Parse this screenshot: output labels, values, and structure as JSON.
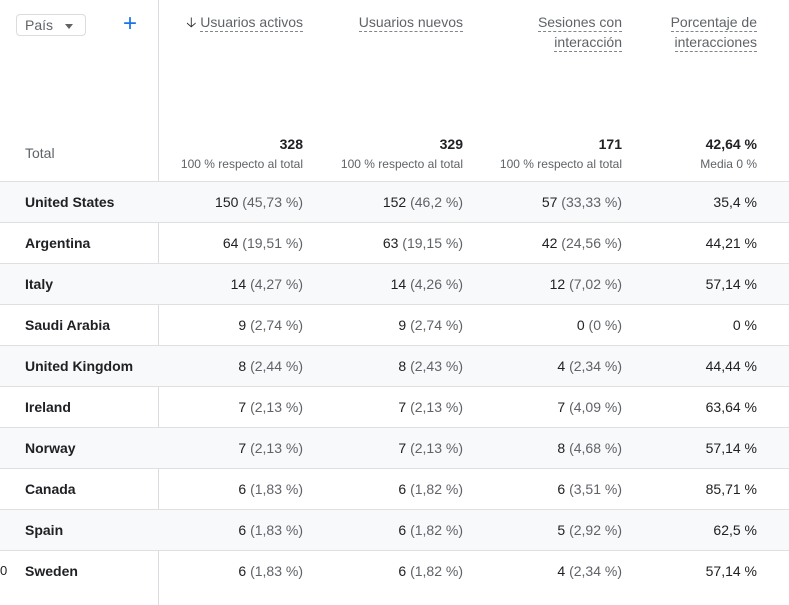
{
  "dimension": {
    "label": "País"
  },
  "columns": [
    {
      "label_line1": "Usuarios activos",
      "label_line2": "",
      "sorted": true
    },
    {
      "label_line1": "Usuarios nuevos",
      "label_line2": ""
    },
    {
      "label_line1": "Sesiones con",
      "label_line2": "interacción"
    },
    {
      "label_line1": "Porcentaje de",
      "label_line2": "interacciones"
    }
  ],
  "totals": {
    "label": "Total",
    "values": [
      {
        "value": "328",
        "sub": "100 % respecto al total"
      },
      {
        "value": "329",
        "sub": "100 % respecto al total"
      },
      {
        "value": "171",
        "sub": "100 % respecto al total"
      },
      {
        "value": "42,64 %",
        "sub": "Media 0 %"
      }
    ]
  },
  "rows": [
    {
      "country": "United States",
      "c1": "150",
      "p1": "(45,73 %)",
      "c2": "152",
      "p2": "(46,2 %)",
      "c3": "57",
      "p3": "(33,33 %)",
      "c4": "35,4 %"
    },
    {
      "country": "Argentina",
      "c1": "64",
      "p1": "(19,51 %)",
      "c2": "63",
      "p2": "(19,15 %)",
      "c3": "42",
      "p3": "(24,56 %)",
      "c4": "44,21 %"
    },
    {
      "country": "Italy",
      "c1": "14",
      "p1": "(4,27 %)",
      "c2": "14",
      "p2": "(4,26 %)",
      "c3": "12",
      "p3": "(7,02 %)",
      "c4": "57,14 %"
    },
    {
      "country": "Saudi Arabia",
      "c1": "9",
      "p1": "(2,74 %)",
      "c2": "9",
      "p2": "(2,74 %)",
      "c3": "0",
      "p3": "(0 %)",
      "c4": "0 %"
    },
    {
      "country": "United Kingdom",
      "c1": "8",
      "p1": "(2,44 %)",
      "c2": "8",
      "p2": "(2,43 %)",
      "c3": "4",
      "p3": "(2,34 %)",
      "c4": "44,44 %"
    },
    {
      "country": "Ireland",
      "c1": "7",
      "p1": "(2,13 %)",
      "c2": "7",
      "p2": "(2,13 %)",
      "c3": "7",
      "p3": "(4,09 %)",
      "c4": "63,64 %"
    },
    {
      "country": "Norway",
      "c1": "7",
      "p1": "(2,13 %)",
      "c2": "7",
      "p2": "(2,13 %)",
      "c3": "8",
      "p3": "(4,68 %)",
      "c4": "57,14 %"
    },
    {
      "country": "Canada",
      "c1": "6",
      "p1": "(1,83 %)",
      "c2": "6",
      "p2": "(1,82 %)",
      "c3": "6",
      "p3": "(3,51 %)",
      "c4": "85,71 %"
    },
    {
      "country": "Spain",
      "c1": "6",
      "p1": "(1,83 %)",
      "c2": "6",
      "p2": "(1,82 %)",
      "c3": "5",
      "p3": "(2,92 %)",
      "c4": "62,5 %"
    },
    {
      "country": "Sweden",
      "c1": "6",
      "p1": "(1,83 %)",
      "c2": "6",
      "p2": "(1,82 %)",
      "c3": "4",
      "p3": "(2,34 %)",
      "c4": "57,14 %"
    }
  ],
  "last_row_index_fragment": "0"
}
